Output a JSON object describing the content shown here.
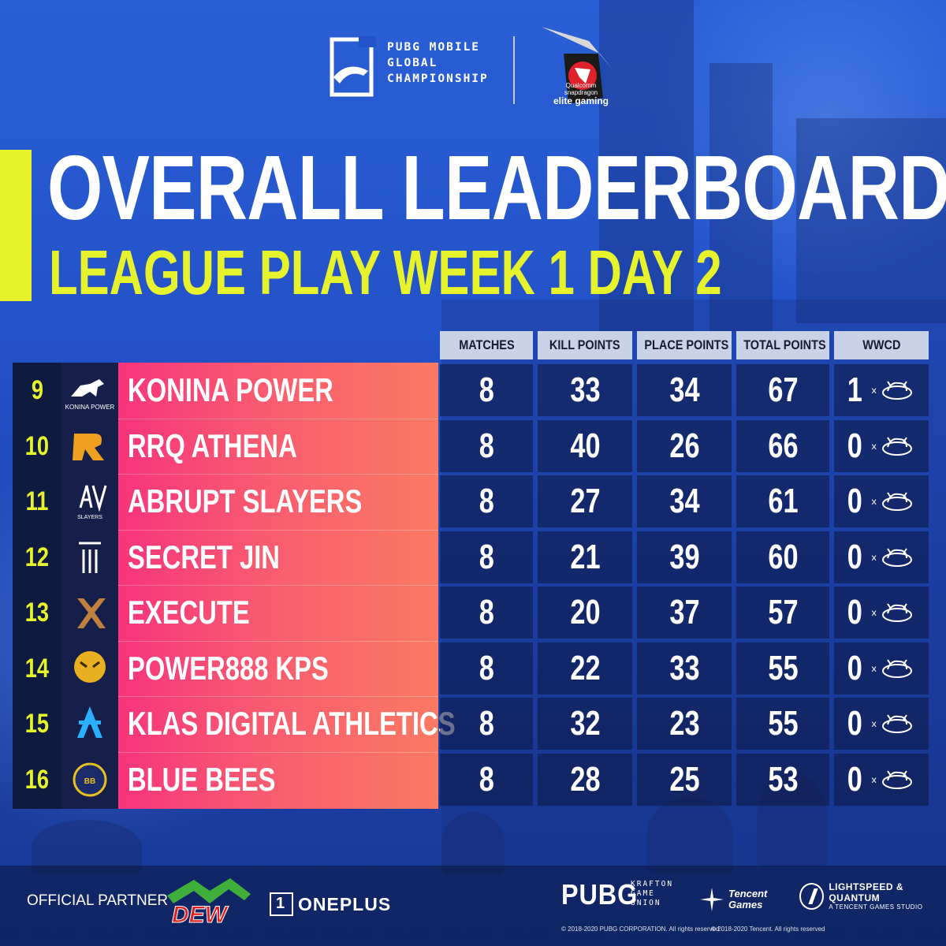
{
  "header": {
    "event_lines": [
      "PUBG MOBILE",
      "GLOBAL",
      "CHAMPIONSHIP"
    ],
    "sponsor_small": "Qualcomm snapdragon",
    "sponsor_big": "elite gaming",
    "sponsor_logo_icon": "snapdragon-dragon-icon",
    "event_logo_icon": "pubg-mobile-icon"
  },
  "title": {
    "main": "OVERALL LEADERBOARD",
    "sub": "LEAGUE PLAY WEEK 1 DAY 2",
    "accent_color": "#e6f22c"
  },
  "table": {
    "columns": [
      "MATCHES",
      "KILL POINTS",
      "PLACE POINTS",
      "TOTAL POINTS",
      "WWCD"
    ],
    "wwcd_symbol": "×",
    "wwcd_icon": "chicken-dinner-icon",
    "rows": [
      {
        "rank": "9",
        "team": "KONINA POWER",
        "logo": "horse-icon",
        "matches": "8",
        "kill": "33",
        "place": "34",
        "total": "67",
        "wwcd": "1"
      },
      {
        "rank": "10",
        "team": "RRQ ATHENA",
        "logo": "rrq-icon",
        "matches": "8",
        "kill": "40",
        "place": "26",
        "total": "66",
        "wwcd": "0"
      },
      {
        "rank": "11",
        "team": "ABRUPT SLAYERS",
        "logo": "as-icon",
        "matches": "8",
        "kill": "27",
        "place": "34",
        "total": "61",
        "wwcd": "0"
      },
      {
        "rank": "12",
        "team": "SECRET JIN",
        "logo": "jin-icon",
        "matches": "8",
        "kill": "21",
        "place": "39",
        "total": "60",
        "wwcd": "0"
      },
      {
        "rank": "13",
        "team": "EXECUTE",
        "logo": "x-icon",
        "matches": "8",
        "kill": "20",
        "place": "37",
        "total": "57",
        "wwcd": "0"
      },
      {
        "rank": "14",
        "team": "POWER888 KPS",
        "logo": "tiger-icon",
        "matches": "8",
        "kill": "22",
        "place": "33",
        "total": "55",
        "wwcd": "0"
      },
      {
        "rank": "15",
        "team": "KLAS DIGITAL ATHLETICS",
        "logo": "klas-icon",
        "matches": "8",
        "kill": "32",
        "place": "23",
        "total": "55",
        "wwcd": "0"
      },
      {
        "rank": "16",
        "team": "BLUE BEES",
        "logo": "bee-icon",
        "matches": "8",
        "kill": "28",
        "place": "25",
        "total": "53",
        "wwcd": "0"
      }
    ]
  },
  "footer": {
    "partner_label": "OFFICIAL PARTNER",
    "oneplus": "ONEPLUS",
    "pubg": "PUBG",
    "krafton_lines": [
      "KRAFTON",
      "GAME",
      "UNION"
    ],
    "tencent_lines": [
      "Tencent",
      "Games"
    ],
    "lq_line1": "LIGHTSPEED & QUANTUM",
    "lq_line2": "A TENCENT GAMES STUDIO",
    "copyright_pubg": "© 2018-2020 PUBG CORPORATION. All rights reserved",
    "copyright_tencent": "© 2018-2020 Tencent. All rights reserved",
    "dew_logo_icon": "mountain-dew-icon"
  }
}
